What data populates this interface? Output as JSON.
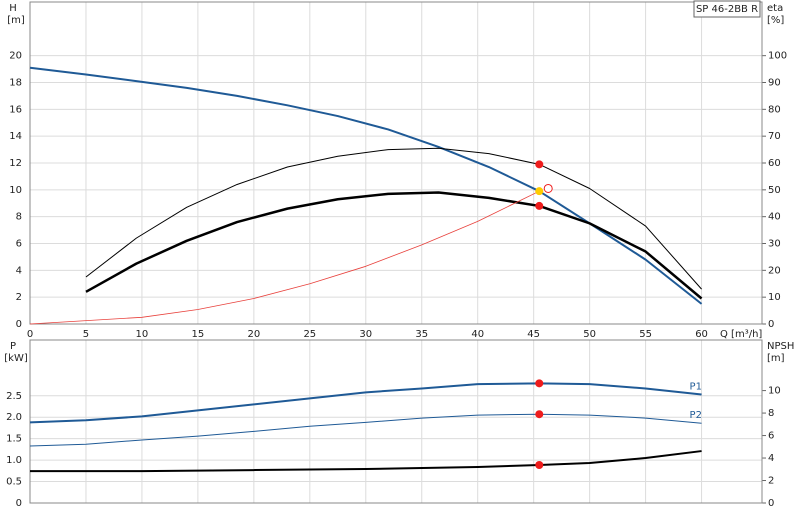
{
  "chart_data": [
    {
      "type": "line",
      "title": "SP 46-2BB R",
      "xlabel": "Q [m³/h]",
      "ylabel": "H",
      "yunit": "[m]",
      "y2label": "eta",
      "y2unit": "[%]",
      "xlim": [
        0,
        65.4
      ],
      "xticks": [
        0,
        5,
        10,
        15,
        20,
        25,
        30,
        35,
        40,
        45,
        50,
        55,
        60
      ],
      "xtick_labels": true,
      "ylim": [
        0,
        24
      ],
      "yticks": [
        0,
        2,
        4,
        6,
        8,
        10,
        12,
        14,
        16,
        18,
        20
      ],
      "y2lim": [
        0,
        120
      ],
      "y2ticks": [
        0,
        10,
        20,
        30,
        40,
        50,
        60,
        70,
        80,
        90,
        100
      ],
      "grid": true,
      "series": [
        {
          "color": "#1f5a96",
          "width": 2,
          "x": [
            0,
            5,
            9.5,
            14,
            18.5,
            23,
            27.5,
            32,
            36.5,
            41,
            45.5,
            50,
            55,
            60
          ],
          "values": [
            19.1,
            18.6,
            18.1,
            17.6,
            17.0,
            16.3,
            15.5,
            14.5,
            13.2,
            11.7,
            9.9,
            7.5,
            4.8,
            1.5
          ]
        },
        {
          "color": "#000000",
          "width": 1,
          "axis": "y2",
          "x": [
            5,
            9.5,
            14,
            18.5,
            23,
            27.5,
            32,
            36.5,
            41,
            45.5,
            50,
            55,
            60
          ],
          "values": [
            17.5,
            32,
            43.5,
            52,
            58.5,
            62.5,
            65,
            65.5,
            63.5,
            59.5,
            50.5,
            36.5,
            13
          ]
        },
        {
          "color": "#000000",
          "width": 2.5,
          "axis": "y2",
          "x": [
            5,
            9.5,
            14,
            18.5,
            23,
            27.5,
            32,
            36.5,
            41,
            45.5,
            50,
            55,
            60
          ],
          "values": [
            12,
            22.5,
            31,
            38,
            43,
            46.5,
            48.5,
            49,
            47,
            44,
            37.5,
            27,
            9.5
          ]
        },
        {
          "color": "#e8413c",
          "width": 0.8,
          "x": [
            0,
            10,
            15,
            20,
            25,
            30,
            35,
            40,
            45.5
          ],
          "values": [
            0,
            0.5,
            1.08,
            1.9,
            3.0,
            4.3,
            5.9,
            7.65,
            9.9
          ]
        },
        {
          "mode": "markers",
          "color": "#ee1c1c",
          "axis": "y2",
          "x": [
            45.5,
            45.5
          ],
          "values": [
            59.5,
            44
          ]
        },
        {
          "mode": "markers",
          "color": "#ffcc00",
          "x": [
            45.5
          ],
          "values": [
            9.9
          ]
        },
        {
          "mode": "markers",
          "hollow": true,
          "color": "#ee1c1c",
          "x": [
            46.3
          ],
          "values": [
            10.1
          ]
        }
      ]
    },
    {
      "type": "line",
      "ylabel": "P",
      "yunit": "[kW]",
      "y2label": "NPSH",
      "y2unit": "[m]",
      "xlim": [
        0,
        65.4
      ],
      "xticks": [
        0,
        5,
        10,
        15,
        20,
        25,
        30,
        35,
        40,
        45,
        50,
        55,
        60
      ],
      "xtick_labels": false,
      "ylim": [
        0,
        3.8
      ],
      "yticks": [
        0,
        0.5,
        {
          "value": 1,
          "label": "1.0"
        },
        1.5,
        {
          "value": 2,
          "label": "2.0"
        },
        2.5
      ],
      "y2lim": [
        0,
        14.5
      ],
      "y2ticks": [
        0,
        2,
        4,
        6,
        8,
        10
      ],
      "grid": true,
      "series": [
        {
          "name": "P1",
          "color": "#1f5a96",
          "width": 2,
          "x": [
            0,
            5,
            10,
            15,
            20,
            25,
            30,
            35,
            40,
            45.5,
            50,
            55,
            60
          ],
          "values": [
            1.88,
            1.93,
            2.02,
            2.16,
            2.3,
            2.44,
            2.58,
            2.67,
            2.77,
            2.79,
            2.77,
            2.67,
            2.53
          ]
        },
        {
          "name": "P2",
          "color": "#1f5a96",
          "width": 1,
          "x": [
            0,
            5,
            10,
            15,
            20,
            25,
            30,
            35,
            40,
            45.5,
            50,
            55,
            60
          ],
          "values": [
            1.33,
            1.37,
            1.47,
            1.56,
            1.67,
            1.79,
            1.88,
            1.98,
            2.05,
            2.07,
            2.05,
            1.98,
            1.86
          ]
        },
        {
          "color": "#000000",
          "width": 2,
          "axis": "y2",
          "x": [
            0,
            10,
            20,
            30,
            40,
            45.5,
            50,
            55,
            60
          ],
          "values": [
            2.84,
            2.84,
            2.93,
            3.02,
            3.2,
            3.38,
            3.56,
            4.0,
            4.62
          ]
        },
        {
          "mode": "markers",
          "color": "#ee1c1c",
          "x": [
            45.5,
            45.5
          ],
          "values": [
            2.79,
            2.07
          ]
        },
        {
          "mode": "markers",
          "color": "#ee1c1c",
          "axis": "y2",
          "x": [
            45.5
          ],
          "values": [
            3.38
          ]
        }
      ]
    }
  ]
}
